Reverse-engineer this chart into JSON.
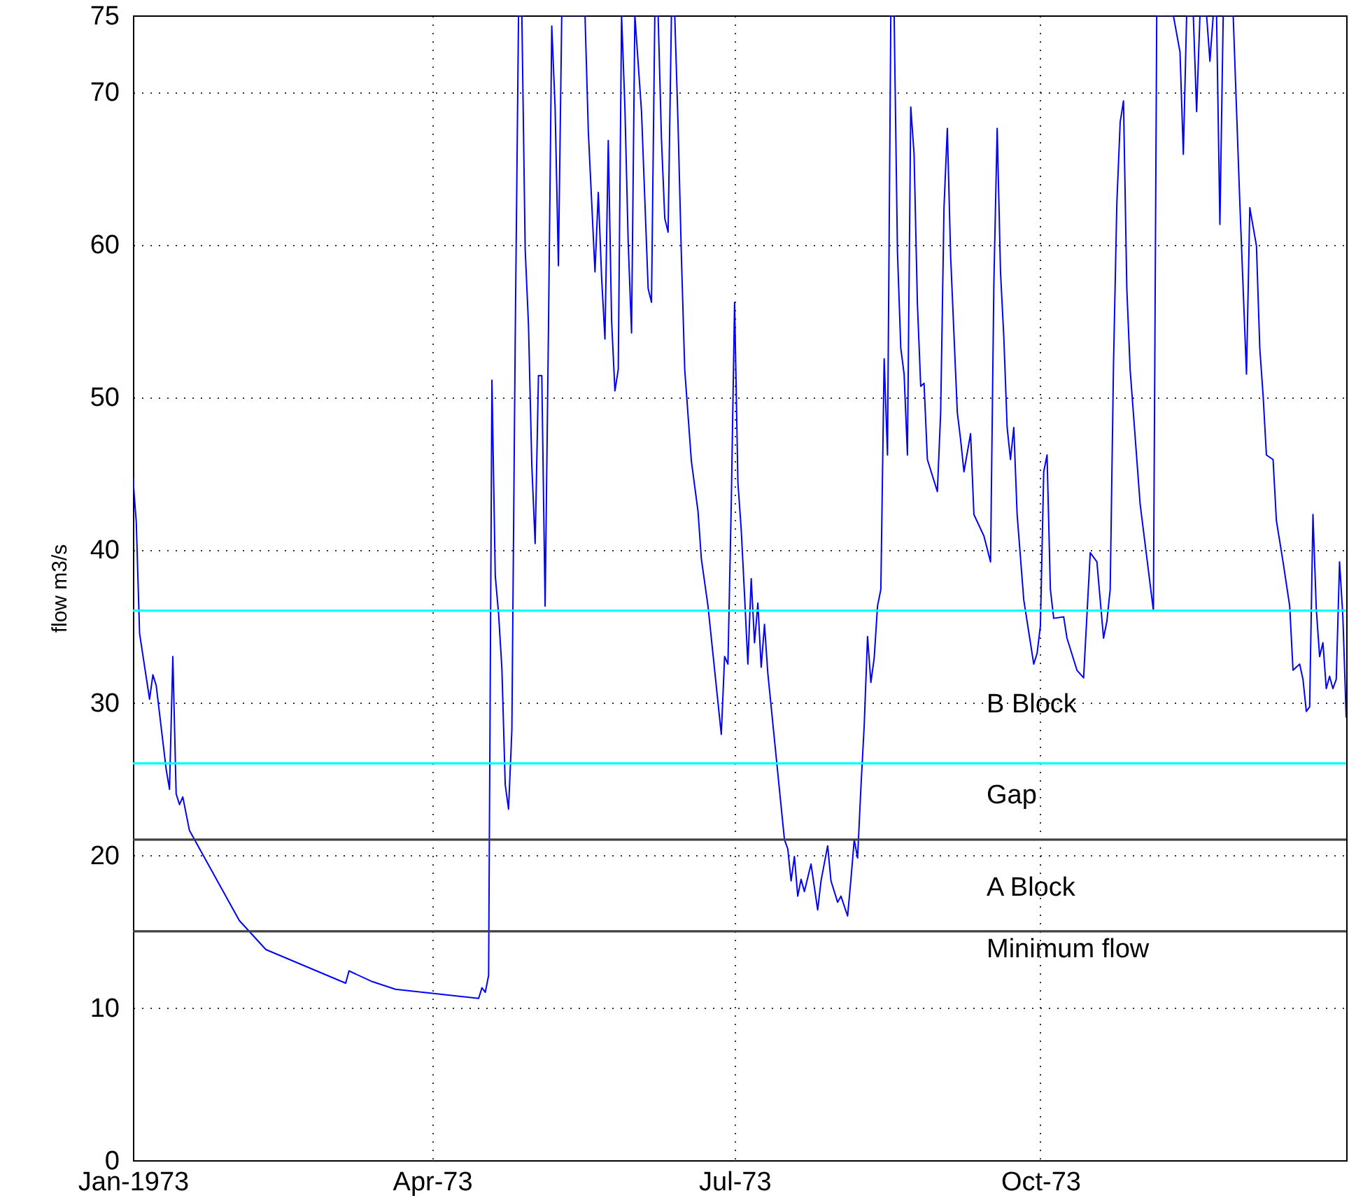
{
  "chart_data": {
    "type": "line",
    "ylabel": "flow m3/s",
    "xlim": [
      "1973-01-01",
      "1974-01-01"
    ],
    "xticks": [
      {
        "value": "1973-01-01",
        "label": "Jan-1973"
      },
      {
        "value": "1973-04-01",
        "label": "Apr-73"
      },
      {
        "value": "1973-07-01",
        "label": "Jul-73"
      },
      {
        "value": "1973-10-01",
        "label": "Oct-73"
      }
    ],
    "ylim": [
      0,
      75
    ],
    "yticks": [
      0,
      10,
      20,
      30,
      40,
      50,
      60,
      70,
      75
    ],
    "grid": true,
    "x": [
      "1973-01-01",
      "1973-01-02",
      "1973-01-03",
      "1973-01-06",
      "1973-01-07",
      "1973-01-08",
      "1973-01-11",
      "1973-01-12",
      "1973-01-13",
      "1973-01-14",
      "1973-01-15",
      "1973-01-16",
      "1973-01-18",
      "1973-02-02",
      "1973-02-10",
      "1973-03-06",
      "1973-03-07",
      "1973-03-14",
      "1973-03-21",
      "1973-04-15",
      "1973-04-16",
      "1973-04-17",
      "1973-04-18",
      "1973-04-19",
      "1973-04-20",
      "1973-04-21",
      "1973-04-22",
      "1973-04-23",
      "1973-04-24",
      "1973-04-25",
      "1973-04-26",
      "1973-04-27",
      "1973-04-28",
      "1973-04-29",
      "1973-04-30",
      "1973-05-01",
      "1973-05-02",
      "1973-05-03",
      "1973-05-04",
      "1973-05-05",
      "1973-05-06",
      "1973-05-07",
      "1973-05-08",
      "1973-05-09",
      "1973-05-10",
      "1973-05-17",
      "1973-05-18",
      "1973-05-20",
      "1973-05-21",
      "1973-05-22",
      "1973-05-23",
      "1973-05-24",
      "1973-05-25",
      "1973-05-26",
      "1973-05-27",
      "1973-05-28",
      "1973-05-29",
      "1973-05-30",
      "1973-05-31",
      "1973-06-01",
      "1973-06-03",
      "1973-06-05",
      "1973-06-06",
      "1973-06-07",
      "1973-06-08",
      "1973-06-09",
      "1973-06-10",
      "1973-06-11",
      "1973-06-12",
      "1973-06-13",
      "1973-06-14",
      "1973-06-15",
      "1973-06-16",
      "1973-06-18",
      "1973-06-20",
      "1973-06-21",
      "1973-06-23",
      "1973-06-26",
      "1973-06-27",
      "1973-06-28",
      "1973-06-29",
      "1973-06-30",
      "1973-07-01",
      "1973-07-02",
      "1973-07-03",
      "1973-07-04",
      "1973-07-05",
      "1973-07-06",
      "1973-07-07",
      "1973-07-08",
      "1973-07-09",
      "1973-07-10",
      "1973-07-11",
      "1973-07-16",
      "1973-07-17",
      "1973-07-18",
      "1973-07-19",
      "1973-07-20",
      "1973-07-21",
      "1973-07-22",
      "1973-07-24",
      "1973-07-26",
      "1973-07-27",
      "1973-07-29",
      "1973-07-30",
      "1973-08-01",
      "1973-08-02",
      "1973-08-04",
      "1973-08-05",
      "1973-08-06",
      "1973-08-07",
      "1973-08-08",
      "1973-08-09",
      "1973-08-10",
      "1973-08-11",
      "1973-08-12",
      "1973-08-13",
      "1973-08-14",
      "1973-08-15",
      "1973-08-16",
      "1973-08-17",
      "1973-08-18",
      "1973-08-19",
      "1973-08-20",
      "1973-08-21",
      "1973-08-22",
      "1973-08-23",
      "1973-08-24",
      "1973-08-25",
      "1973-08-26",
      "1973-08-27",
      "1973-08-28",
      "1973-08-31",
      "1973-09-01",
      "1973-09-02",
      "1973-09-03",
      "1973-09-04",
      "1973-09-06",
      "1973-09-07",
      "1973-09-08",
      "1973-09-10",
      "1973-09-11",
      "1973-09-14",
      "1973-09-16",
      "1973-09-17",
      "1973-09-18",
      "1973-09-19",
      "1973-09-20",
      "1973-09-21",
      "1973-09-22",
      "1973-09-23",
      "1973-09-24",
      "1973-09-26",
      "1973-09-28",
      "1973-09-29",
      "1973-09-30",
      "1973-10-01",
      "1973-10-02",
      "1973-10-03",
      "1973-10-04",
      "1973-10-05",
      "1973-10-08",
      "1973-10-09",
      "1973-10-12",
      "1973-10-14",
      "1973-10-16",
      "1973-10-18",
      "1973-10-20",
      "1973-10-21",
      "1973-10-22",
      "1973-10-23",
      "1973-10-24",
      "1973-10-25",
      "1973-10-26",
      "1973-10-27",
      "1973-10-28",
      "1973-10-31",
      "1973-11-02",
      "1973-11-04",
      "1973-11-05",
      "1973-11-10",
      "1973-11-12",
      "1973-11-13",
      "1973-11-14",
      "1973-11-16",
      "1973-11-17",
      "1973-11-18",
      "1973-11-20",
      "1973-11-21",
      "1973-11-22",
      "1973-11-23",
      "1973-11-24",
      "1973-11-25",
      "1973-11-28",
      "1973-11-30",
      "1973-12-02",
      "1973-12-03",
      "1973-12-05",
      "1973-12-06",
      "1973-12-07",
      "1973-12-08",
      "1973-12-10",
      "1973-12-11",
      "1973-12-13",
      "1973-12-15",
      "1973-12-16",
      "1973-12-18",
      "1973-12-19",
      "1973-12-20",
      "1973-12-21",
      "1973-12-22",
      "1973-12-23",
      "1973-12-24",
      "1973-12-25",
      "1973-12-26",
      "1973-12-27",
      "1973-12-28",
      "1973-12-29",
      "1973-12-30",
      "1973-12-31",
      "1974-01-01"
    ],
    "series": [
      {
        "color": "#0000ff",
        "values": [
          44.7,
          41.8,
          34.5,
          30.2,
          31.8,
          31.1,
          25.6,
          24.3,
          33.0,
          24.0,
          23.3,
          23.8,
          21.6,
          15.7,
          13.8,
          11.6,
          12.4,
          11.7,
          11.2,
          10.6,
          11.3,
          11.0,
          12.1,
          51.1,
          38.3,
          35.8,
          32.2,
          24.6,
          23.0,
          28.2,
          53.7,
          75,
          75,
          59.7,
          54.7,
          45.5,
          40.4,
          51.4,
          51.4,
          36.3,
          54.3,
          74.3,
          69.0,
          58.6,
          75,
          75,
          67.4,
          58.2,
          63.4,
          57.8,
          53.8,
          66.8,
          55.0,
          50.4,
          51.8,
          75,
          69.0,
          60.1,
          54.2,
          75,
          68.7,
          57.1,
          56.2,
          75,
          75,
          66.9,
          61.7,
          60.8,
          75,
          75,
          67.8,
          59.2,
          51.8,
          45.8,
          42.5,
          39.4,
          36.3,
          30.0,
          27.9,
          33.0,
          32.5,
          43.0,
          56.2,
          44.4,
          41.3,
          37.0,
          32.5,
          38.1,
          33.9,
          36.5,
          32.3,
          35.1,
          31.9,
          21.0,
          20.4,
          18.3,
          19.9,
          17.3,
          18.4,
          17.6,
          19.4,
          16.4,
          18.3,
          20.6,
          18.3,
          16.9,
          17.3,
          16.0,
          18.4,
          21.0,
          19.8,
          24.4,
          28.5,
          34.3,
          31.3,
          32.9,
          36.3,
          37.4,
          52.5,
          46.2,
          75,
          75,
          59.5,
          53.2,
          51.5,
          46.2,
          69.0,
          65.9,
          56.1,
          50.7,
          50.9,
          45.9,
          43.8,
          49.0,
          62.4,
          67.6,
          59.2,
          49.0,
          47.2,
          45.1,
          47.6,
          42.3,
          40.9,
          39.2,
          57.4,
          67.6,
          58.2,
          53.9,
          48.0,
          45.9,
          48.0,
          42.3,
          36.7,
          33.9,
          32.5,
          33.2,
          35.0,
          45.1,
          46.2,
          37.4,
          35.5,
          35.6,
          34.2,
          32.1,
          31.6,
          39.8,
          39.2,
          34.2,
          35.3,
          37.4,
          52.2,
          62.7,
          68.0,
          69.4,
          57.1,
          51.8,
          43.0,
          39.5,
          36.0,
          75,
          75,
          72.6,
          65.9,
          75,
          75,
          68.7,
          75,
          75,
          72.0,
          75,
          75,
          61.3,
          75,
          75,
          62.7,
          51.5,
          62.4,
          59.9,
          53.2,
          50.1,
          46.2,
          45.9,
          41.9,
          39.2,
          36.3,
          32.1,
          32.5,
          31.5,
          29.4,
          29.7,
          42.3,
          36.1,
          33.0,
          33.9,
          30.9,
          31.7,
          30.9,
          31.5,
          39.2,
          35.6,
          29.0
        ]
      }
    ],
    "ref_lines": [
      {
        "axis": "y",
        "value": 36,
        "color": "#00ffff"
      },
      {
        "axis": "y",
        "value": 26,
        "color": "#00ffff"
      },
      {
        "axis": "y",
        "value": 21,
        "color": "#404040"
      },
      {
        "axis": "y",
        "value": 15,
        "color": "#404040"
      }
    ],
    "annotations": [
      "B Block",
      "Gap",
      "A Block",
      "Minimum flow"
    ]
  }
}
